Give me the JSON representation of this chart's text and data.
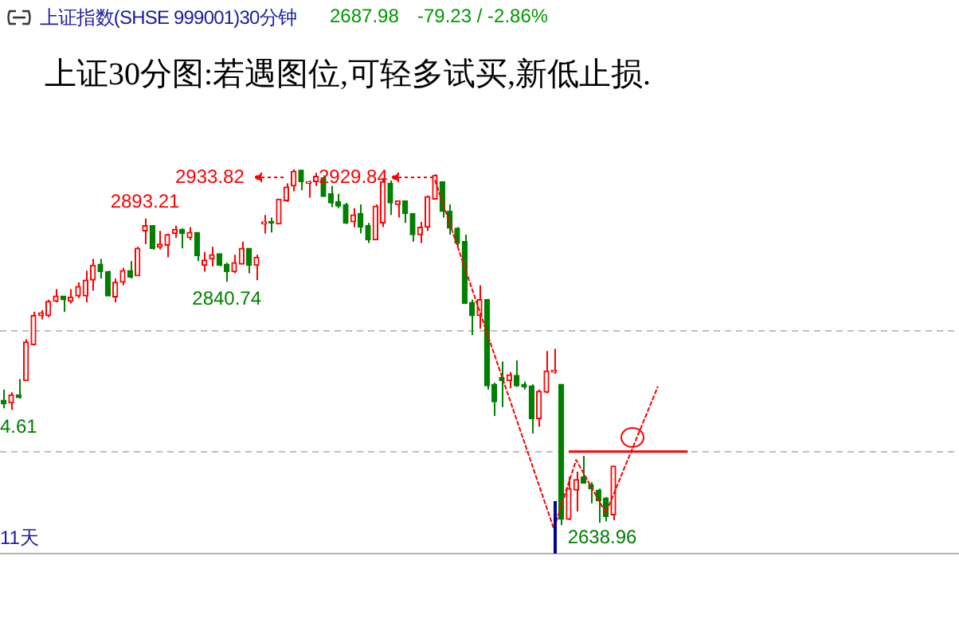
{
  "chart_data": {
    "type": "candlestick",
    "title": "上证30分图:若遇图位,可轻多试买,新低止损.",
    "subtitle": "上证指数(SHSE 999001)30分钟",
    "categories": [
      null,
      null,
      null,
      null,
      null,
      null,
      null,
      null,
      null,
      null,
      null,
      null,
      null,
      null,
      null,
      null,
      null,
      null,
      null,
      null,
      null,
      null,
      null,
      null,
      null,
      null,
      null,
      null,
      null,
      null,
      null,
      null,
      null,
      null,
      null,
      null,
      null,
      null,
      null,
      null,
      null,
      null,
      null,
      null,
      null,
      null,
      null,
      null,
      null,
      null,
      null,
      null,
      null,
      null,
      null,
      null,
      null,
      null,
      null,
      null,
      null,
      null,
      null,
      null,
      null,
      null,
      null,
      null,
      null,
      null,
      null,
      null,
      null,
      null,
      null,
      null,
      null,
      null,
      null,
      null,
      null,
      null,
      null,
      null,
      null,
      null,
      null,
      null,
      null,
      null,
      null,
      null,
      null,
      null,
      null,
      null,
      null,
      null,
      null,
      null,
      null,
      null,
      null,
      null,
      null,
      null,
      null,
      null,
      null,
      null,
      null,
      null,
      null,
      null,
      null,
      null,
      null,
      null,
      null,
      null,
      null,
      null,
      null,
      null,
      null,
      null,
      null,
      null,
      null
    ],
    "ohlc": [
      [
        2742.5,
        2751.3,
        2735.9,
        2739.5
      ],
      [
        2740.3,
        2749.1,
        2734.61,
        2746.9
      ],
      [
        2746.9,
        2760.1,
        2743.9,
        2744.7
      ],
      [
        2758.8,
        2793.0,
        2758.8,
        2790.8
      ],
      [
        2788.6,
        2815.8,
        2788.6,
        2812.7
      ],
      [
        2812.7,
        2817.1,
        2809.6,
        2814.9
      ],
      [
        2812.7,
        2825.9,
        2811.4,
        2824.5
      ],
      [
        2824.5,
        2834.6,
        2823.7,
        2828.9
      ],
      [
        2828.9,
        2828.9,
        2815.8,
        2825.9
      ],
      [
        2824.5,
        2834.6,
        2822.8,
        2828.1
      ],
      [
        2828.9,
        2840.3,
        2827.2,
        2836.8
      ],
      [
        2828.9,
        2850.0,
        2823.7,
        2842.1
      ],
      [
        2842.1,
        2859.6,
        2833.3,
        2854.4
      ],
      [
        2855.3,
        2859.6,
        2843.4,
        2849.1
      ],
      [
        2849.1,
        2850.0,
        2828.9,
        2828.9
      ],
      [
        2828.1,
        2843.4,
        2823.7,
        2840.3
      ],
      [
        2840.3,
        2852.2,
        2837.7,
        2850.0
      ],
      [
        2850.0,
        2857.9,
        2843.4,
        2844.7
      ],
      [
        2845.6,
        2869.7,
        2845.6,
        2868.4
      ],
      [
        2882.9,
        2893.21,
        2871.9,
        2887.3
      ],
      [
        2887.3,
        2887.3,
        2867.5,
        2868.4
      ],
      [
        2869.3,
        2882.9,
        2867.5,
        2871.9
      ],
      [
        2871.0,
        2880.7,
        2861.0,
        2879.8
      ],
      [
        2880.7,
        2887.3,
        2877.2,
        2884.2
      ],
      [
        2884.2,
        2885.1,
        2868.4,
        2880.7
      ],
      [
        2877.2,
        2886.0,
        2875.4,
        2881.6
      ],
      [
        2881.6,
        2881.6,
        2857.9,
        2862.3
      ],
      [
        2854.4,
        2865.3,
        2849.1,
        2858.8
      ],
      [
        2859.6,
        2869.7,
        2853.5,
        2863.2
      ],
      [
        2864.0,
        2864.0,
        2853.5,
        2854.4
      ],
      [
        2855.3,
        2856.6,
        2840.74,
        2849.1
      ],
      [
        2849.1,
        2863.2,
        2847.8,
        2856.6
      ],
      [
        2855.3,
        2874.1,
        2855.3,
        2868.4
      ],
      [
        2868.4,
        2868.4,
        2847.8,
        2854.4
      ],
      [
        2854.4,
        2863.2,
        2842.1,
        2861.0
      ],
      [
        2888.6,
        2896.1,
        2880.7,
        2890.4
      ],
      [
        2890.8,
        2893.9,
        2881.6,
        2889.5
      ],
      [
        2888.6,
        2909.2,
        2888.6,
        2909.2
      ],
      [
        2907.9,
        2922.4,
        2907.0,
        2919.3
      ],
      [
        2920.2,
        2933.82,
        2915.8,
        2932.5
      ],
      [
        2933.3,
        2933.6,
        2916.7,
        2923.7
      ],
      [
        2922.4,
        2924.6,
        2910.5,
        2923.7
      ],
      [
        2923.7,
        2931.1,
        2920.2,
        2928.1
      ],
      [
        2926.8,
        2929.0,
        2911.4,
        2911.4
      ],
      [
        2913.6,
        2920.2,
        2902.6,
        2906.1
      ],
      [
        2907.0,
        2913.6,
        2901.7,
        2903.5
      ],
      [
        2904.8,
        2906.1,
        2888.6,
        2889.5
      ],
      [
        2890.4,
        2901.7,
        2886.0,
        2896.1
      ],
      [
        2897.4,
        2904.8,
        2880.7,
        2886.0
      ],
      [
        2887.3,
        2889.5,
        2872.8,
        2875.4
      ],
      [
        2875.4,
        2904.8,
        2875.4,
        2903.5
      ],
      [
        2889.5,
        2926.8,
        2886.0,
        2923.7
      ],
      [
        2922.4,
        2924.6,
        2896.1,
        2906.1
      ],
      [
        2904.8,
        2907.9,
        2893.9,
        2907.9
      ],
      [
        2907.9,
        2907.9,
        2889.5,
        2897.4
      ],
      [
        2897.4,
        2897.4,
        2874.1,
        2879.8
      ],
      [
        2879.8,
        2890.4,
        2872.8,
        2886.0
      ],
      [
        2886.0,
        2912.3,
        2882.9,
        2911.4
      ],
      [
        2909.2,
        2929.84,
        2909.2,
        2929.0
      ],
      [
        2923.7,
        2923.7,
        2893.9,
        2899.1
      ],
      [
        2899.1,
        2904.8,
        2879.8,
        2885.1
      ],
      [
        2885.1,
        2886.0,
        2869.7,
        2872.8
      ],
      [
        2874.1,
        2879.8,
        2822.8,
        2822.8
      ],
      [
        2823.7,
        2825.9,
        2796.5,
        2812.7
      ],
      [
        2812.7,
        2837.7,
        2801.8,
        2825.9
      ],
      [
        2825.9,
        2825.9,
        2751.3,
        2754.4
      ],
      [
        2755.7,
        2757.0,
        2729.4,
        2741.2
      ],
      [
        2761.4,
        2774.6,
        2736.8,
        2758.8
      ],
      [
        2758.8,
        2765.8,
        2752.6,
        2763.6
      ],
      [
        2763.2,
        2775.4,
        2753.5,
        2754.4
      ],
      [
        2755.7,
        2757.9,
        2751.3,
        2753.5
      ],
      [
        2754.4,
        2755.7,
        2714.9,
        2727.2
      ],
      [
        2727.2,
        2751.3,
        2720.6,
        2750.0
      ],
      [
        2749.1,
        2783.3,
        2748.3,
        2766.7
      ],
      [
        2765.8,
        2785.1,
        2764.5,
        2767.5
      ],
      [
        2755.7,
        2755.7,
        2638.96,
        2643.9
      ],
      [
        2643.9,
        2679.0,
        2643.0,
        2669.3
      ],
      [
        2668.0,
        2683.3,
        2650.4,
        2676.7
      ],
      [
        2679.0,
        2696.5,
        2673.7,
        2673.7
      ],
      [
        2672.4,
        2674.6,
        2657.0,
        2669.3
      ],
      [
        2668.0,
        2669.3,
        2641.0,
        2659.2
      ],
      [
        2661.4,
        2662.3,
        2642.0,
        2646.1
      ],
      [
        2647.4,
        2687.98,
        2643.0,
        2687.98
      ],
      null,
      null,
      null,
      null,
      null,
      null,
      null,
      null,
      null,
      null,
      null,
      null,
      null,
      null,
      null,
      null,
      null,
      null,
      null,
      null,
      null,
      null,
      null,
      null,
      null,
      null,
      null,
      null,
      null,
      null,
      null,
      null,
      null,
      null,
      null,
      null,
      null,
      null,
      null,
      null,
      null,
      null,
      null,
      null,
      null,
      null
    ],
    "colors": [
      "#008000",
      "#ff0000",
      "#008000",
      "#ff0000",
      "#ff0000",
      "#ff0000",
      "#ff0000",
      "#ff0000",
      "#008000",
      "#ff0000",
      "#ff0000",
      "#ff0000",
      "#ff0000",
      "#008000",
      "#008000",
      "#ff0000",
      "#ff0000",
      "#008000",
      "#ff0000",
      "#ff0000",
      "#008000",
      "#ff0000",
      "#ff0000",
      "#ff0000",
      "#008000",
      "#ff0000",
      "#008000",
      "#ff0000",
      "#ff0000",
      "#008000",
      "#008000",
      "#ff0000",
      "#ff0000",
      "#008000",
      "#ff0000",
      "#ff0000",
      "#008000",
      "#ff0000",
      "#ff0000",
      "#ff0000",
      "#008000",
      "#ff0000",
      "#ff0000",
      "#008000",
      "#008000",
      "#008000",
      "#008000",
      "#ff0000",
      "#008000",
      "#008000",
      "#ff0000",
      "#ff0000",
      "#008000",
      "#ff0000",
      "#008000",
      "#008000",
      "#ff0000",
      "#ff0000",
      "#ff0000",
      "#008000",
      "#008000",
      "#008000",
      "#008000",
      "#008000",
      "#ff0000",
      "#008000",
      "#008000",
      "#008000",
      "#ff0000",
      "#008000",
      "#008000",
      "#008000",
      "#ff0000",
      "#ff0000",
      "#ff0000",
      "#008000",
      "#ff0000",
      "#ff0000",
      "#008000",
      "#008000",
      "#008000",
      "#008000",
      "#ff0000",
      null,
      null,
      null,
      null,
      null,
      null,
      null,
      null,
      null,
      null,
      null,
      null,
      null,
      null,
      null,
      null,
      null,
      null,
      null,
      null,
      null,
      null,
      null,
      null,
      null,
      null,
      null,
      null,
      null,
      null,
      null,
      null,
      null,
      null,
      null,
      null,
      null,
      null,
      null,
      null,
      null,
      null,
      null,
      null,
      null,
      null
    ],
    "series": [
      {
        "type": "line",
        "color": "#ff0000",
        "line_style": "dashed",
        "marker": "none",
        "values": [
          null,
          null,
          null,
          null,
          null,
          null,
          null,
          null,
          null,
          null,
          null,
          null,
          null,
          null,
          null,
          null,
          null,
          null,
          null,
          null,
          null,
          null,
          null,
          null,
          null,
          null,
          null,
          null,
          null,
          null,
          null,
          null,
          null,
          null,
          null,
          null,
          null,
          null,
          null,
          null,
          null,
          null,
          null,
          null,
          null,
          null,
          null,
          null,
          null,
          null,
          null,
          null,
          null,
          null,
          null,
          null,
          null,
          null,
          2925,
          null,
          null,
          null,
          null,
          null,
          null,
          null,
          null,
          null,
          null,
          null,
          null,
          null,
          null,
          null,
          2636,
          null,
          null,
          2693,
          null,
          null,
          null,
          2649,
          null,
          null,
          null,
          null,
          null,
          null,
          2754,
          null,
          null,
          null,
          null,
          null,
          null,
          null,
          null,
          null,
          null,
          null,
          null,
          null,
          null,
          null,
          null,
          null,
          null,
          null,
          null,
          null,
          null,
          null,
          null,
          null,
          null,
          null,
          null,
          null,
          null,
          null,
          null,
          null,
          null,
          null,
          null,
          null,
          null,
          null,
          null
        ]
      },
      {
        "type": "line",
        "color": "#ff0000",
        "line_style": "solid",
        "marker": "none",
        "values": [
          null,
          null,
          null,
          null,
          null,
          null,
          null,
          null,
          null,
          null,
          null,
          null,
          null,
          null,
          null,
          null,
          null,
          null,
          null,
          null,
          null,
          null,
          null,
          null,
          null,
          null,
          null,
          null,
          null,
          null,
          null,
          null,
          null,
          null,
          null,
          null,
          null,
          null,
          null,
          null,
          null,
          null,
          null,
          null,
          null,
          null,
          null,
          null,
          null,
          null,
          null,
          null,
          null,
          null,
          null,
          null,
          null,
          null,
          null,
          null,
          null,
          null,
          null,
          null,
          null,
          null,
          null,
          null,
          null,
          null,
          null,
          null,
          null,
          null,
          null,
          null,
          2700,
          null,
          null,
          null,
          null,
          null,
          null,
          null,
          null,
          null,
          null,
          null,
          null,
          null,
          null,
          null,
          2700,
          null,
          null,
          null,
          null,
          null,
          null,
          null,
          null,
          null,
          null,
          null,
          null,
          null,
          null,
          null,
          null,
          null,
          null,
          null,
          null,
          null,
          null,
          null,
          null,
          null,
          null,
          null,
          null,
          null,
          null,
          null,
          null,
          null,
          null,
          null,
          null
        ]
      }
    ],
    "yticks": [
      {
        "value": 2700,
        "label": null
      },
      {
        "value": 2800,
        "label": null
      }
    ],
    "grid": "y",
    "tick_labels": false,
    "legend": false,
    "annotations": [
      "2933.82",
      "2929.84",
      {
        "text": "2893.21",
        "y": 2893.21
      },
      {
        "text": "2840.74",
        "y": 2840.74
      },
      {
        "text": "4.61",
        "y": 2734.61
      },
      {
        "text": "2638.96",
        "y": 2638.96
      },
      "2687.98",
      "-79.23 / -2.86%",
      "11天"
    ]
  }
}
